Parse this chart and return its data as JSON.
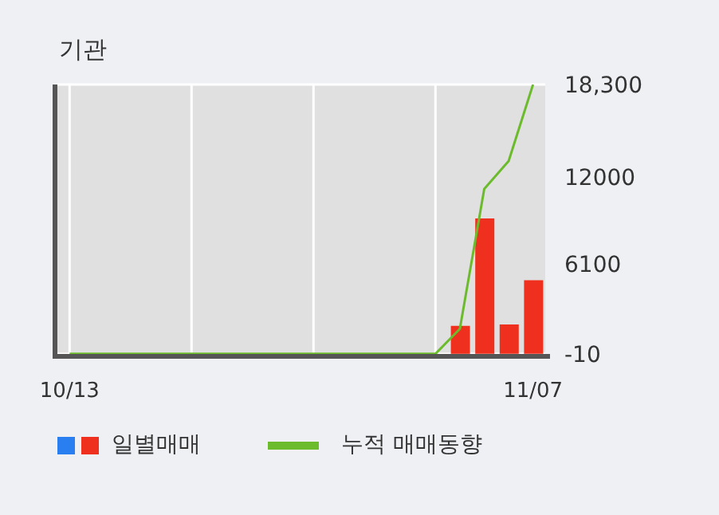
{
  "chart_data": {
    "type": "bar",
    "title": "기관",
    "categories": [
      "10/13",
      null,
      null,
      null,
      null,
      null,
      null,
      null,
      null,
      null,
      null,
      null,
      null,
      null,
      null,
      null,
      null,
      null,
      null,
      "11/07"
    ],
    "series": [
      {
        "name": "일별매매",
        "color": "#f0301e",
        "values": [
          0,
          0,
          0,
          0,
          0,
          0,
          0,
          0,
          0,
          0,
          0,
          0,
          0,
          0,
          0,
          0,
          1900,
          9200,
          2000,
          5000
        ]
      },
      {
        "name": "누적 매매동향",
        "type": "line",
        "color": "#6cbb2c",
        "values": [
          0,
          0,
          0,
          0,
          0,
          0,
          0,
          0,
          0,
          0,
          0,
          0,
          0,
          0,
          0,
          0,
          1700,
          11200,
          13100,
          18300
        ]
      }
    ],
    "ylim": [
      -10,
      18300
    ],
    "yticks": [
      -10,
      6100,
      12000,
      {
        "value": 18300,
        "label": "18,300"
      }
    ],
    "grid": true,
    "legend": "bottom",
    "marker": "none"
  }
}
